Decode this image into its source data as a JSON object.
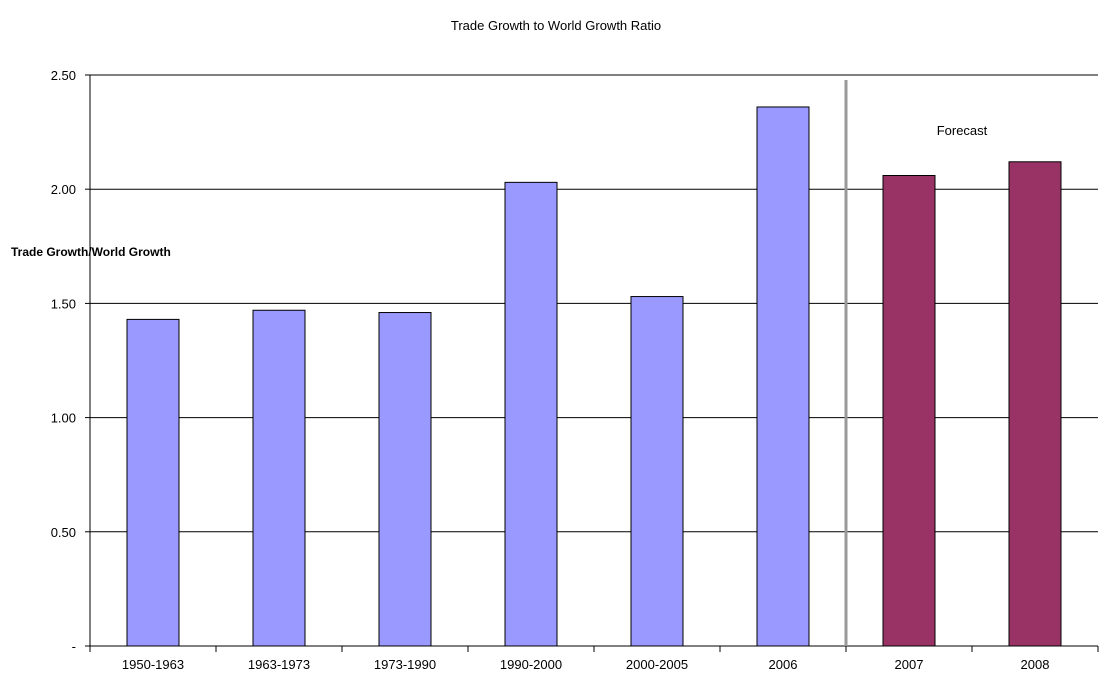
{
  "chart_data": {
    "type": "bar",
    "title": "Trade Growth to World Growth Ratio",
    "xlabel": "",
    "ylabel": "Trade Growth/World Growth",
    "categories": [
      "1950-1963",
      "1963-1973",
      "1973-1990",
      "1990-2000",
      "2000-2005",
      "2006",
      "2007",
      "2008"
    ],
    "values": [
      1.43,
      1.47,
      1.46,
      2.03,
      1.53,
      2.36,
      2.06,
      2.12
    ],
    "ylim": [
      0,
      2.5
    ],
    "yticks": [
      0,
      0.5,
      1.0,
      1.5,
      2.0,
      2.5
    ],
    "ytick_labels": [
      "-",
      "0.50",
      "1.00",
      "1.50",
      "2.00",
      "2.50"
    ],
    "grid": true,
    "legend": "none",
    "forecast_from_category": "2007",
    "annotation": "Forecast",
    "colors": {
      "actual": "#9999ff",
      "forecast": "#993366",
      "divider": "#999999",
      "grid": "#000000"
    }
  }
}
